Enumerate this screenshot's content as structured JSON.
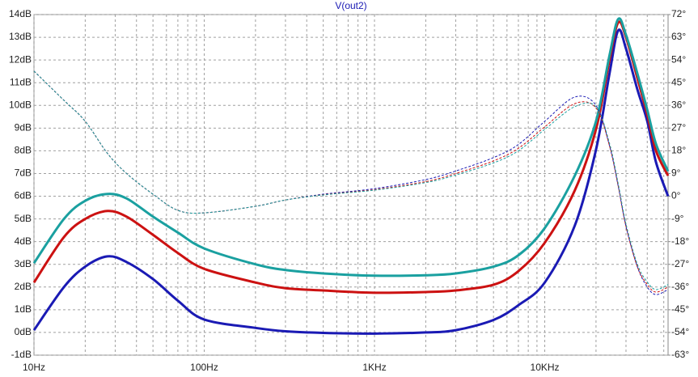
{
  "chart_data": {
    "type": "line",
    "title": "V(out2)",
    "x_scale": "log",
    "xlim": [
      10,
      53000
    ],
    "xticks": [
      {
        "value": 10,
        "label": "10Hz"
      },
      {
        "value": 100,
        "label": "100Hz"
      },
      {
        "value": 1000,
        "label": "1KHz"
      },
      {
        "value": 10000,
        "label": "10KHz"
      }
    ],
    "xminor": [
      20,
      30,
      40,
      50,
      60,
      70,
      80,
      90,
      200,
      300,
      400,
      500,
      600,
      700,
      800,
      900,
      2000,
      3000,
      4000,
      5000,
      6000,
      7000,
      8000,
      9000,
      20000,
      30000,
      40000,
      50000
    ],
    "ylim": [
      -1,
      14
    ],
    "yticks": [
      {
        "value": -1,
        "label": "-1dB"
      },
      {
        "value": 0,
        "label": "0dB"
      },
      {
        "value": 1,
        "label": "1dB"
      },
      {
        "value": 2,
        "label": "2dB"
      },
      {
        "value": 3,
        "label": "3dB"
      },
      {
        "value": 4,
        "label": "4dB"
      },
      {
        "value": 5,
        "label": "5dB"
      },
      {
        "value": 6,
        "label": "6dB"
      },
      {
        "value": 7,
        "label": "7dB"
      },
      {
        "value": 8,
        "label": "8dB"
      },
      {
        "value": 9,
        "label": "9dB"
      },
      {
        "value": 10,
        "label": "10dB"
      },
      {
        "value": 11,
        "label": "11dB"
      },
      {
        "value": 12,
        "label": "12dB"
      },
      {
        "value": 13,
        "label": "13dB"
      },
      {
        "value": 14,
        "label": "14dB"
      }
    ],
    "y2lim": [
      -63,
      72
    ],
    "y2ticks": [
      {
        "value": -63,
        "label": "-63°"
      },
      {
        "value": -54,
        "label": "-54°"
      },
      {
        "value": -45,
        "label": "-45°"
      },
      {
        "value": -36,
        "label": "-36°"
      },
      {
        "value": -27,
        "label": "-27°"
      },
      {
        "value": -18,
        "label": "-18°"
      },
      {
        "value": -9,
        "label": "-9°"
      },
      {
        "value": 0,
        "label": "0°"
      },
      {
        "value": 9,
        "label": "9°"
      },
      {
        "value": 18,
        "label": "18°"
      },
      {
        "value": 27,
        "label": "27°"
      },
      {
        "value": 36,
        "label": "36°"
      },
      {
        "value": 45,
        "label": "45°"
      },
      {
        "value": 54,
        "label": "54°"
      },
      {
        "value": 63,
        "label": "63°"
      },
      {
        "value": 72,
        "label": "72°"
      }
    ],
    "grid": true,
    "x": [
      10,
      15,
      20,
      27,
      35,
      50,
      70,
      100,
      200,
      300,
      500,
      1000,
      2000,
      3000,
      5000,
      7000,
      10000,
      15000,
      20000,
      24000,
      27000,
      30000,
      35000,
      40000,
      45000,
      53000
    ],
    "series": [
      {
        "color": "#1a1ab4",
        "style": "solid",
        "values": [
          0.1,
          2.0,
          2.9,
          3.35,
          3.1,
          2.35,
          1.4,
          0.57,
          0.2,
          0.05,
          -0.02,
          -0.05,
          0.0,
          0.1,
          0.55,
          1.2,
          2.2,
          4.7,
          8.05,
          11.4,
          13.3,
          12.5,
          10.7,
          9.3,
          7.5,
          6.0
        ]
      },
      {
        "color": "#cc1111",
        "style": "solid",
        "values": [
          2.2,
          4.2,
          5.0,
          5.35,
          5.1,
          4.3,
          3.5,
          2.8,
          2.2,
          1.95,
          1.85,
          1.75,
          1.78,
          1.85,
          2.1,
          2.7,
          3.95,
          6.25,
          8.95,
          12.0,
          13.65,
          13.0,
          11.2,
          9.6,
          8.0,
          6.9
        ]
      },
      {
        "color": "#1aa0a0",
        "style": "solid",
        "values": [
          3.05,
          5.0,
          5.8,
          6.1,
          5.9,
          5.1,
          4.4,
          3.7,
          3.0,
          2.75,
          2.6,
          2.5,
          2.52,
          2.6,
          2.9,
          3.4,
          4.6,
          6.9,
          9.3,
          12.2,
          13.8,
          13.1,
          11.4,
          9.8,
          8.3,
          7.1
        ]
      },
      {
        "color": "#1a1ab4",
        "style": "dashed",
        "axis": "y2",
        "values": [
          49.6,
          38,
          29.7,
          17,
          9,
          0.8,
          -5.6,
          -6.6,
          -4,
          -1.5,
          0.8,
          3,
          6.6,
          10,
          15.3,
          20.5,
          29.7,
          39.3,
          36,
          20,
          4,
          -12,
          -28,
          -36,
          -39,
          -37
        ]
      },
      {
        "color": "#cc1111",
        "style": "dashed",
        "axis": "y2",
        "values": [
          49.6,
          38,
          29.7,
          17,
          9,
          0.8,
          -5.6,
          -6.6,
          -4,
          -1.5,
          0.6,
          2.6,
          5.8,
          9,
          14,
          19,
          27.5,
          36.7,
          35,
          20,
          4,
          -12,
          -28,
          -35,
          -38,
          -36
        ]
      },
      {
        "color": "#1aa0a0",
        "style": "dashed",
        "axis": "y2",
        "values": [
          49.6,
          38,
          29.7,
          17,
          9,
          0.8,
          -5.6,
          -6.6,
          -4,
          -1.5,
          0.5,
          2.4,
          5.4,
          8.4,
          13.2,
          18,
          26.5,
          35.5,
          35.5,
          21,
          5,
          -11,
          -27,
          -34,
          -37,
          -35
        ]
      }
    ]
  }
}
